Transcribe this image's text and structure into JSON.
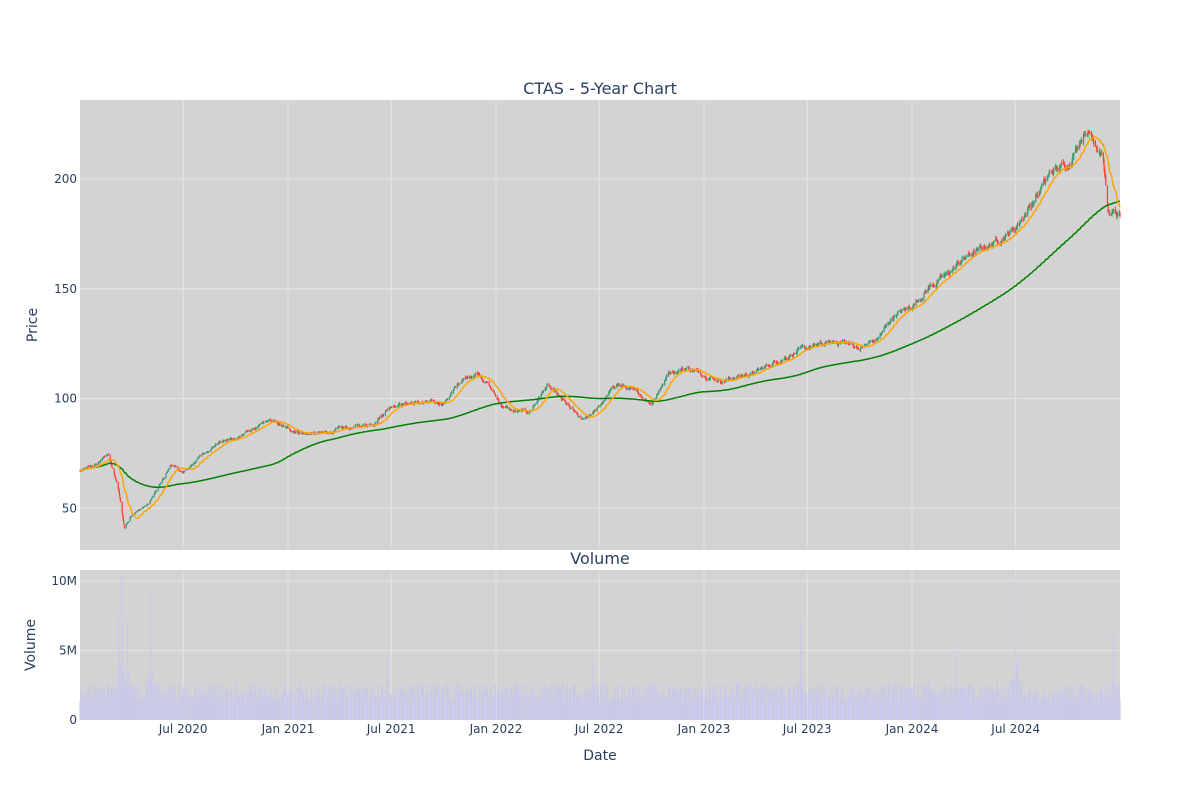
{
  "chart": {
    "title": "CTAS - 5-Year Chart",
    "volume_title": "Volume",
    "price_ylabel": "Price",
    "volume_ylabel": "Volume",
    "xlabel": "Date"
  },
  "colors": {
    "plot_bg": "#d3d3d3",
    "grid": "#e5e5e5",
    "up": "#3d9970",
    "down": "#ff4136",
    "ma_short": "#ffa500",
    "ma_long": "#008000",
    "volume": "#c8c8ea",
    "text": "#2a3f5f"
  },
  "chart_data": [
    {
      "type": "candlestick",
      "title": "CTAS - 5-Year Chart",
      "ylabel": "Price",
      "xlim": [
        "2020-01-02",
        "2024-12-31"
      ],
      "ylim": [
        31,
        236
      ],
      "x_ticks": [
        {
          "date": "2020-07-01",
          "label": "Jul 2020"
        },
        {
          "date": "2021-01-01",
          "label": "Jan 2021"
        },
        {
          "date": "2021-07-01",
          "label": "Jul 2021"
        },
        {
          "date": "2022-01-01",
          "label": "Jan 2022"
        },
        {
          "date": "2022-07-01",
          "label": "Jul 2022"
        },
        {
          "date": "2023-01-01",
          "label": "Jan 2023"
        },
        {
          "date": "2023-07-01",
          "label": "Jul 2023"
        },
        {
          "date": "2024-01-01",
          "label": "Jan 2024"
        },
        {
          "date": "2024-07-01",
          "label": "Jul 2024"
        }
      ],
      "y_ticks": [
        50,
        100,
        150,
        200
      ],
      "grid": true,
      "close_anchors": [
        [
          "2020-01-02",
          67
        ],
        [
          "2020-02-01",
          70
        ],
        [
          "2020-02-20",
          75
        ],
        [
          "2020-03-10",
          58
        ],
        [
          "2020-03-20",
          41
        ],
        [
          "2020-04-01",
          47
        ],
        [
          "2020-05-01",
          52
        ],
        [
          "2020-05-20",
          60
        ],
        [
          "2020-06-10",
          70
        ],
        [
          "2020-07-01",
          66
        ],
        [
          "2020-08-01",
          74
        ],
        [
          "2020-09-01",
          80
        ],
        [
          "2020-10-01",
          82
        ],
        [
          "2020-11-01",
          86
        ],
        [
          "2020-12-01",
          90
        ],
        [
          "2021-01-01",
          86
        ],
        [
          "2021-02-01",
          84
        ],
        [
          "2021-03-01",
          84
        ],
        [
          "2021-04-01",
          86
        ],
        [
          "2021-05-01",
          87
        ],
        [
          "2021-06-01",
          89
        ],
        [
          "2021-07-01",
          97
        ],
        [
          "2021-08-01",
          98
        ],
        [
          "2021-09-01",
          98
        ],
        [
          "2021-10-01",
          98
        ],
        [
          "2021-11-01",
          108
        ],
        [
          "2021-12-01",
          112
        ],
        [
          "2021-12-20",
          106
        ],
        [
          "2022-01-10",
          97
        ],
        [
          "2022-02-01",
          94
        ],
        [
          "2022-03-01",
          94
        ],
        [
          "2022-04-01",
          106
        ],
        [
          "2022-05-01",
          98
        ],
        [
          "2022-06-01",
          90
        ],
        [
          "2022-07-01",
          96
        ],
        [
          "2022-08-01",
          107
        ],
        [
          "2022-09-01",
          103
        ],
        [
          "2022-10-01",
          98
        ],
        [
          "2022-11-01",
          112
        ],
        [
          "2022-12-01",
          114
        ],
        [
          "2023-01-01",
          111
        ],
        [
          "2023-02-01",
          108
        ],
        [
          "2023-03-01",
          110
        ],
        [
          "2023-04-01",
          112
        ],
        [
          "2023-05-01",
          116
        ],
        [
          "2023-06-01",
          120
        ],
        [
          "2023-07-01",
          123
        ],
        [
          "2023-08-01",
          125
        ],
        [
          "2023-09-01",
          126
        ],
        [
          "2023-10-01",
          123
        ],
        [
          "2023-11-01",
          127
        ],
        [
          "2023-12-01",
          138
        ],
        [
          "2024-01-01",
          142
        ],
        [
          "2024-02-01",
          151
        ],
        [
          "2024-03-01",
          156
        ],
        [
          "2024-04-01",
          164
        ],
        [
          "2024-05-01",
          168
        ],
        [
          "2024-06-01",
          172
        ],
        [
          "2024-07-01",
          178
        ],
        [
          "2024-08-01",
          190
        ],
        [
          "2024-09-01",
          203
        ],
        [
          "2024-10-01",
          207
        ],
        [
          "2024-11-01",
          223
        ],
        [
          "2024-12-01",
          212
        ],
        [
          "2024-12-10",
          185
        ],
        [
          "2024-12-31",
          183
        ]
      ],
      "series": [
        {
          "name": "Short moving average",
          "color": "#ffa500"
        },
        {
          "name": "Long moving average",
          "color": "#008000"
        }
      ]
    },
    {
      "type": "bar",
      "title": "Volume",
      "ylabel": "Volume",
      "xlabel": "Date",
      "ylim": [
        0,
        10800000
      ],
      "y_ticks": [
        {
          "value": 0,
          "label": "0"
        },
        {
          "value": 5000000,
          "label": "5M"
        },
        {
          "value": 10000000,
          "label": "10M"
        }
      ],
      "grid": true,
      "base_volume": 1800000,
      "spikes": [
        [
          "2020-03-10",
          7500000
        ],
        [
          "2020-03-16",
          10400000
        ],
        [
          "2020-03-25",
          7000000
        ],
        [
          "2020-05-05",
          9500000
        ],
        [
          "2021-06-25",
          4800000
        ],
        [
          "2022-06-20",
          4300000
        ],
        [
          "2023-06-20",
          7000000
        ],
        [
          "2024-03-20",
          5000000
        ],
        [
          "2024-07-01",
          10300000
        ],
        [
          "2024-12-20",
          6200000
        ]
      ]
    }
  ]
}
